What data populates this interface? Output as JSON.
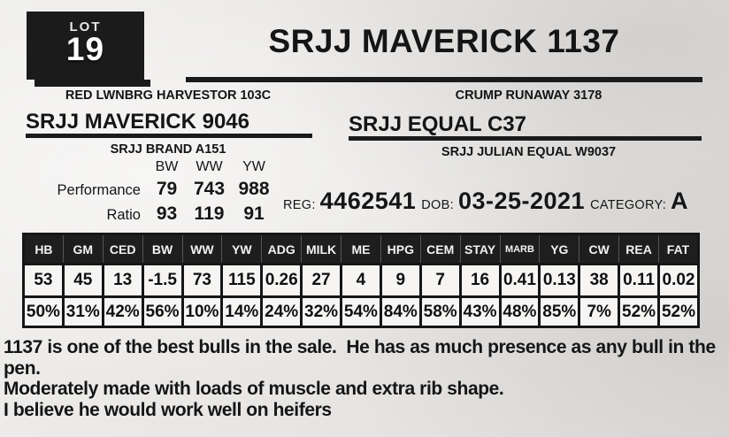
{
  "lot": {
    "label": "LOT",
    "number": "19"
  },
  "title": "SRJJ MAVERICK 1137",
  "pedigree": {
    "sire_side": {
      "grandsire": "RED LWNBRG HARVESTOR 103C",
      "sire": "SRJJ MAVERICK 9046",
      "granddam": "SRJJ BRAND A151"
    },
    "dam_side": {
      "grandsire": "CRUMP RUNAWAY 3178",
      "dam": "SRJJ EQUAL C37",
      "granddam": "SRJJ JULIAN EQUAL W9037"
    }
  },
  "performance": {
    "headers": [
      "BW",
      "WW",
      "YW"
    ],
    "row1_label": "Performance",
    "row1": [
      "79",
      "743",
      "988"
    ],
    "row2_label": "Ratio",
    "row2": [
      "93",
      "119",
      "91"
    ]
  },
  "registration": {
    "reg_label": "REG:",
    "reg_number": "4462541",
    "dob_label": "DOB:",
    "dob": "03-25-2021",
    "category_label": "CATEGORY:",
    "category": "A"
  },
  "epd": {
    "headers": [
      "HB",
      "GM",
      "CED",
      "BW",
      "WW",
      "YW",
      "ADG",
      "MILK",
      "ME",
      "HPG",
      "CEM",
      "STAY",
      "MARB",
      "YG",
      "CW",
      "REA",
      "FAT"
    ],
    "values": [
      "53",
      "45",
      "13",
      "-1.5",
      "73",
      "115",
      "0.26",
      "27",
      "4",
      "9",
      "7",
      "16",
      "0.41",
      "0.13",
      "38",
      "0.11",
      "0.02"
    ],
    "percentiles": [
      "50%",
      "31%",
      "42%",
      "56%",
      "10%",
      "14%",
      "24%",
      "32%",
      "54%",
      "84%",
      "58%",
      "43%",
      "48%",
      "85%",
      "7%",
      "52%",
      "52%"
    ]
  },
  "notes": {
    "line1": "1137 is one of the best bulls in the sale.  He has as much presence as any bull in the pen.",
    "line2": "Moderately made with loads of muscle and extra rib shape.",
    "line3": "I believe he would work well on heifers"
  }
}
